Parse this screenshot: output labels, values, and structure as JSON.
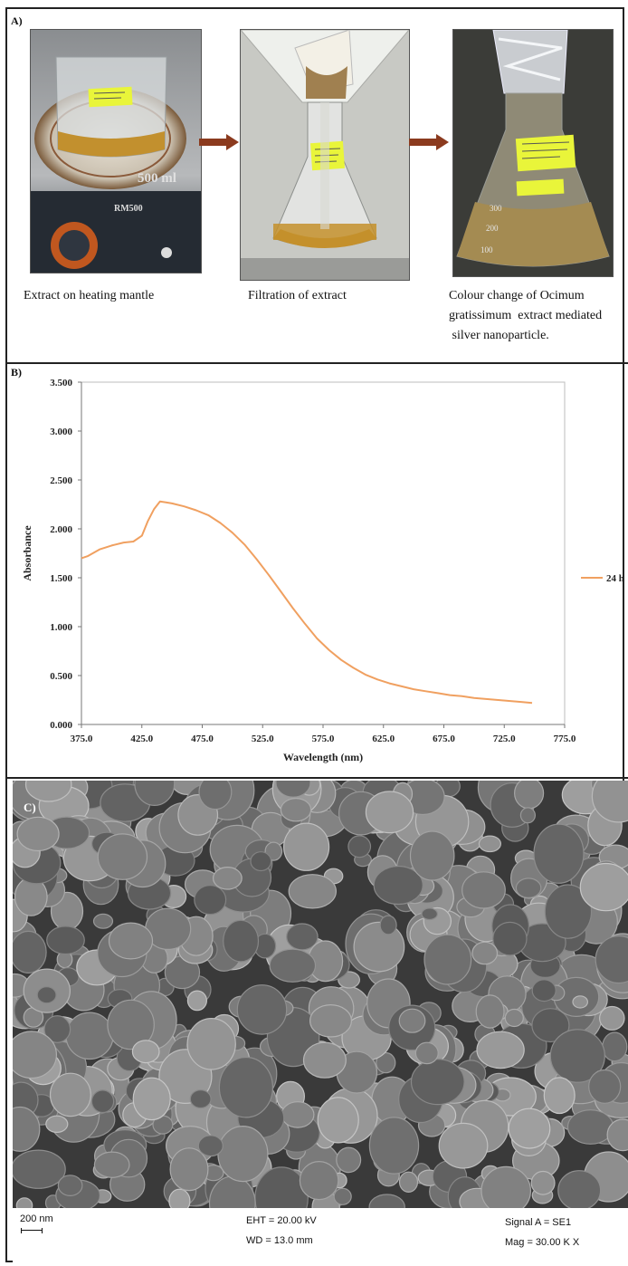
{
  "panel_a": {
    "label": "A)",
    "captions": {
      "step1": "Extract  on  heating mantle",
      "step2": "Filtration of extract",
      "step3_line1": "Colour change of Ocimum",
      "step3_line2": "gratissimum  extract mediated",
      "step3_line3": " silver nanoparticle."
    },
    "photo_text": {
      "beaker_volume": "500 ml",
      "mantle_brand": "RM500",
      "flask_marks": [
        "300",
        "200",
        "100"
      ]
    },
    "colors": {
      "arrow": "#8b3a1e",
      "label_tag": "#e9f53a",
      "liquid": "#b8892a"
    }
  },
  "chart_data": {
    "type": "line",
    "panel_label": "B)",
    "xlabel": "Wavelength (nm)",
    "ylabel": "Absorbance",
    "xlim": [
      375,
      775
    ],
    "ylim": [
      0,
      3.5
    ],
    "x_ticks": [
      "375.0",
      "425.0",
      "475.0",
      "525.0",
      "575.0",
      "625.0",
      "675.0",
      "725.0",
      "775.0"
    ],
    "y_ticks": [
      "0.000",
      "0.500",
      "1.000",
      "1.500",
      "2.000",
      "2.500",
      "3.000",
      "3.500"
    ],
    "grid": false,
    "legend_position": "right",
    "series": [
      {
        "name": "24 h",
        "color": "#f0a060",
        "points": [
          [
            375,
            1.7
          ],
          [
            380,
            1.72
          ],
          [
            390,
            1.79
          ],
          [
            400,
            1.83
          ],
          [
            410,
            1.86
          ],
          [
            418,
            1.87
          ],
          [
            425,
            1.93
          ],
          [
            430,
            2.08
          ],
          [
            435,
            2.2
          ],
          [
            440,
            2.28
          ],
          [
            445,
            2.27
          ],
          [
            450,
            2.26
          ],
          [
            460,
            2.23
          ],
          [
            470,
            2.19
          ],
          [
            480,
            2.14
          ],
          [
            490,
            2.06
          ],
          [
            500,
            1.96
          ],
          [
            510,
            1.84
          ],
          [
            520,
            1.69
          ],
          [
            530,
            1.53
          ],
          [
            540,
            1.36
          ],
          [
            550,
            1.19
          ],
          [
            560,
            1.03
          ],
          [
            570,
            0.88
          ],
          [
            580,
            0.76
          ],
          [
            590,
            0.66
          ],
          [
            600,
            0.58
          ],
          [
            610,
            0.51
          ],
          [
            620,
            0.46
          ],
          [
            630,
            0.42
          ],
          [
            640,
            0.39
          ],
          [
            650,
            0.36
          ],
          [
            660,
            0.34
          ],
          [
            670,
            0.32
          ],
          [
            680,
            0.3
          ],
          [
            690,
            0.29
          ],
          [
            700,
            0.27
          ],
          [
            710,
            0.26
          ],
          [
            720,
            0.25
          ],
          [
            730,
            0.24
          ],
          [
            740,
            0.23
          ],
          [
            748,
            0.22
          ]
        ]
      }
    ]
  },
  "panel_c": {
    "label": "C)",
    "scale_bar": "200 nm",
    "eht": "EHT = 20.00 kV",
    "wd": "WD = 13.0 mm",
    "signal": "Signal A = SE1",
    "mag": "Mag =  30.00 K X"
  }
}
